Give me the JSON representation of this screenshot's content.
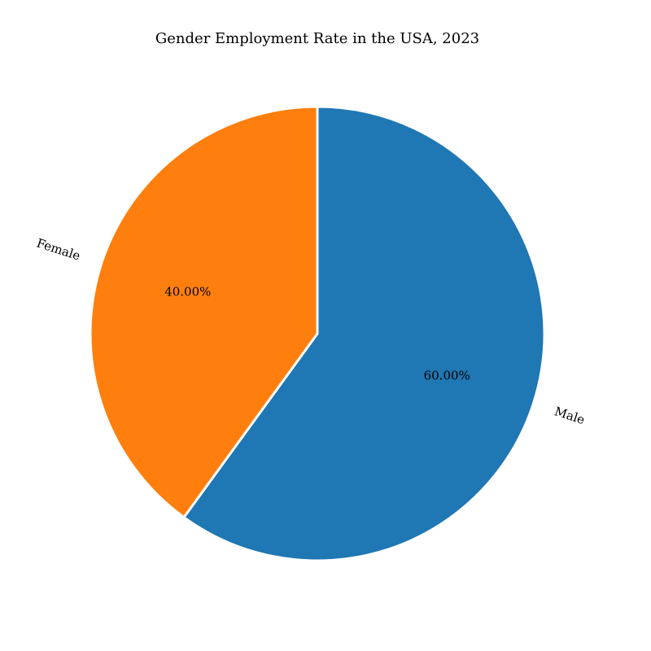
{
  "chart_data": {
    "type": "pie",
    "title": "Gender Employment Rate in the USA, 2023",
    "categories": [
      "Male",
      "Female"
    ],
    "values": [
      60,
      40
    ],
    "value_labels": [
      "60.00%",
      "40.00%"
    ],
    "colors": [
      "#1f77b4",
      "#ff7f0e"
    ],
    "start_angle_deg": 90,
    "direction": "clockwise",
    "legend": "none"
  }
}
